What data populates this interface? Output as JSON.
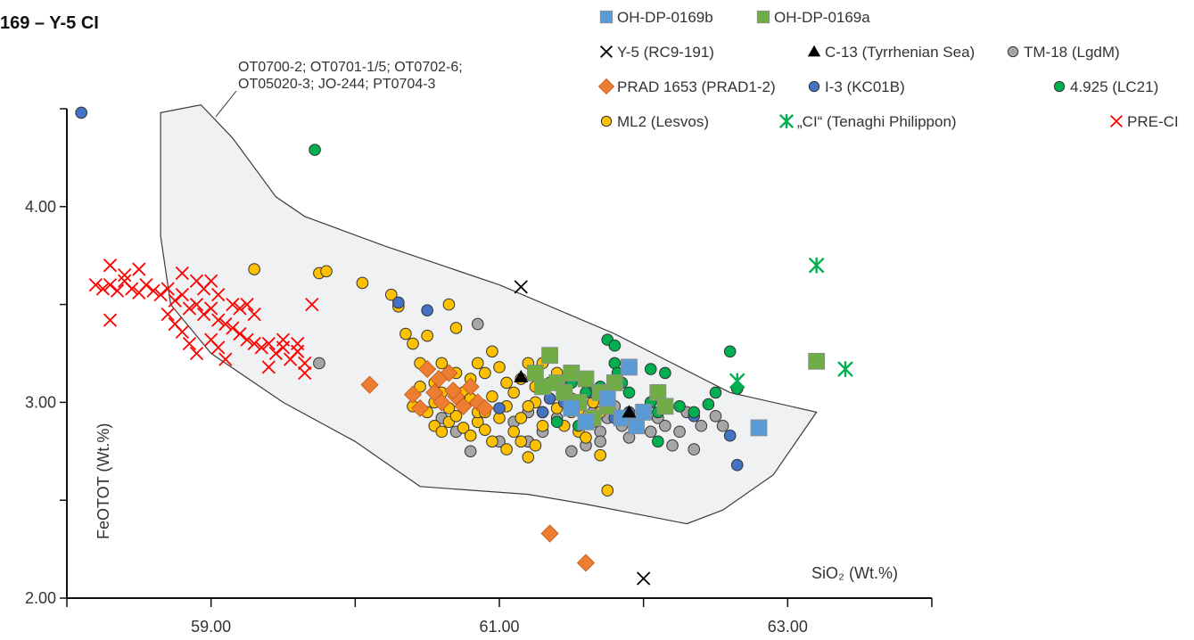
{
  "chart_data": {
    "type": "scatter",
    "title": "169 – Y-5 CI",
    "xlabel": "SiO₂ (Wt.%)",
    "ylabel": "FeOTOT (Wt.%)",
    "xlim": [
      58.0,
      64.0
    ],
    "ylim": [
      2.0,
      4.5
    ],
    "x_ticks": [
      59.0,
      61.0,
      63.0
    ],
    "x_tick_labels": [
      "59.00",
      "61.00",
      "63.00"
    ],
    "y_ticks": [
      2.0,
      3.0,
      4.0
    ],
    "y_tick_labels": [
      "2.00",
      "3.00",
      "4.00"
    ],
    "field_annotation": [
      "OT0700-2; OT0701-1/5; OT0702-6;",
      "OT05020-3; JO-244; PT0704-3"
    ],
    "field_outline": [
      [
        58.65,
        4.48
      ],
      [
        58.93,
        4.52
      ],
      [
        59.15,
        4.35
      ],
      [
        59.45,
        4.05
      ],
      [
        59.65,
        3.95
      ],
      [
        60.2,
        3.8
      ],
      [
        61.0,
        3.6
      ],
      [
        61.8,
        3.35
      ],
      [
        62.2,
        3.2
      ],
      [
        62.6,
        3.05
      ],
      [
        63.2,
        2.95
      ],
      [
        62.9,
        2.63
      ],
      [
        62.55,
        2.45
      ],
      [
        62.3,
        2.38
      ],
      [
        61.6,
        2.48
      ],
      [
        61.2,
        2.53
      ],
      [
        60.45,
        2.57
      ],
      [
        60.0,
        2.8
      ],
      [
        59.5,
        3.0
      ],
      [
        59.0,
        3.25
      ],
      [
        58.72,
        3.5
      ],
      [
        58.65,
        3.85
      ],
      [
        58.65,
        4.1
      ]
    ],
    "series": [
      {
        "name": "OH-DP-0169b",
        "marker": "square",
        "color": "#5b9bd5",
        "points": [
          [
            61.85,
            2.92
          ],
          [
            61.95,
            2.88
          ],
          [
            62.0,
            2.95
          ],
          [
            61.9,
            3.18
          ],
          [
            61.5,
            2.97
          ],
          [
            62.8,
            2.87
          ],
          [
            61.75,
            3.02
          ],
          [
            61.6,
            2.9
          ]
        ]
      },
      {
        "name": "OH-DP-0169a",
        "marker": "square",
        "color": "#70ad47",
        "points": [
          [
            61.4,
            3.1
          ],
          [
            61.5,
            3.15
          ],
          [
            61.45,
            3.05
          ],
          [
            61.55,
            3.0
          ],
          [
            61.3,
            3.08
          ],
          [
            61.35,
            3.24
          ],
          [
            61.6,
            3.12
          ],
          [
            61.7,
            3.05
          ],
          [
            61.75,
            2.98
          ],
          [
            61.8,
            3.1
          ],
          [
            62.1,
            3.05
          ],
          [
            62.15,
            2.98
          ],
          [
            61.65,
            2.92
          ],
          [
            61.25,
            3.15
          ],
          [
            63.2,
            3.21
          ]
        ]
      },
      {
        "name": "Y-5 (RC9-191)",
        "marker": "xcross",
        "color": "#000000",
        "points": [
          [
            61.15,
            3.59
          ],
          [
            62.0,
            2.1
          ]
        ]
      },
      {
        "name": "C-13 (Tyrrhenian Sea)",
        "marker": "triangle",
        "color": "#000000",
        "points": [
          [
            61.15,
            3.13
          ],
          [
            61.9,
            2.95
          ]
        ]
      },
      {
        "name": "TM-18 (LgdM)",
        "marker": "circle",
        "color": "#a6a6a6",
        "points": [
          [
            59.75,
            3.2
          ],
          [
            60.85,
            3.4
          ],
          [
            61.1,
            2.9
          ],
          [
            61.2,
            2.95
          ],
          [
            61.3,
            2.85
          ],
          [
            61.4,
            2.92
          ],
          [
            61.45,
            3.0
          ],
          [
            61.55,
            2.88
          ],
          [
            61.65,
            2.95
          ],
          [
            61.7,
            2.85
          ],
          [
            61.75,
            2.92
          ],
          [
            61.8,
            2.98
          ],
          [
            61.85,
            2.88
          ],
          [
            61.9,
            2.82
          ],
          [
            61.95,
            2.9
          ],
          [
            62.0,
            2.95
          ],
          [
            62.05,
            2.85
          ],
          [
            62.1,
            2.92
          ],
          [
            62.15,
            2.88
          ],
          [
            62.2,
            2.78
          ],
          [
            62.25,
            2.85
          ],
          [
            62.3,
            2.95
          ],
          [
            62.4,
            2.88
          ],
          [
            62.5,
            2.93
          ],
          [
            62.55,
            2.88
          ],
          [
            62.35,
            2.76
          ],
          [
            60.6,
            2.92
          ],
          [
            60.7,
            2.85
          ],
          [
            60.8,
            2.75
          ],
          [
            61.0,
            2.8
          ],
          [
            61.2,
            2.8
          ],
          [
            61.5,
            2.75
          ],
          [
            61.6,
            2.78
          ],
          [
            61.7,
            2.8
          ]
        ]
      },
      {
        "name": "PRAD 1653 (PRAD1-2)",
        "marker": "diamond",
        "color": "#ed7d31",
        "points": [
          [
            60.1,
            3.09
          ],
          [
            60.4,
            3.04
          ],
          [
            60.5,
            3.17
          ],
          [
            60.55,
            3.05
          ],
          [
            60.6,
            3.0
          ],
          [
            60.65,
            3.15
          ],
          [
            60.7,
            3.03
          ],
          [
            60.75,
            2.98
          ],
          [
            60.8,
            3.08
          ],
          [
            60.85,
            3.0
          ],
          [
            60.9,
            2.97
          ],
          [
            60.45,
            2.97
          ],
          [
            60.58,
            3.12
          ],
          [
            60.68,
            3.06
          ],
          [
            61.35,
            2.33
          ],
          [
            61.6,
            2.18
          ]
        ]
      },
      {
        "name": "I-3 (KC01B)",
        "marker": "circle",
        "color": "#4472c4",
        "points": [
          [
            58.1,
            4.48
          ],
          [
            60.3,
            3.51
          ],
          [
            60.5,
            3.47
          ],
          [
            61.0,
            2.97
          ],
          [
            61.3,
            2.95
          ],
          [
            61.35,
            3.02
          ],
          [
            61.45,
            3.0
          ],
          [
            61.65,
            3.05
          ],
          [
            61.8,
            2.92
          ],
          [
            61.9,
            2.95
          ],
          [
            62.05,
            3.0
          ],
          [
            62.35,
            2.93
          ],
          [
            62.6,
            2.83
          ],
          [
            62.65,
            2.68
          ]
        ]
      },
      {
        "name": "4.925 (LC21)",
        "marker": "circle",
        "color": "#00b050",
        "points": [
          [
            59.72,
            4.29
          ],
          [
            61.75,
            3.32
          ],
          [
            61.8,
            3.29
          ],
          [
            61.8,
            3.2
          ],
          [
            61.82,
            3.15
          ],
          [
            61.85,
            3.1
          ],
          [
            61.9,
            3.05
          ],
          [
            62.05,
            3.17
          ],
          [
            62.15,
            3.15
          ],
          [
            62.05,
            3.0
          ],
          [
            62.1,
            2.95
          ],
          [
            62.25,
            2.98
          ],
          [
            62.35,
            2.95
          ],
          [
            62.6,
            3.26
          ],
          [
            62.5,
            3.05
          ],
          [
            62.45,
            2.99
          ],
          [
            62.65,
            3.07
          ],
          [
            62.1,
            2.8
          ],
          [
            61.7,
            3.08
          ],
          [
            61.5,
            3.1
          ],
          [
            61.6,
            3.05
          ],
          [
            61.4,
            2.9
          ],
          [
            61.55,
            2.88
          ]
        ]
      },
      {
        "name": "ML2 (Lesvos)",
        "marker": "circle",
        "color": "#ffc000",
        "points": [
          [
            59.3,
            3.68
          ],
          [
            59.75,
            3.66
          ],
          [
            59.8,
            3.67
          ],
          [
            60.05,
            3.61
          ],
          [
            60.25,
            3.55
          ],
          [
            60.3,
            3.49
          ],
          [
            60.35,
            3.35
          ],
          [
            60.4,
            3.3
          ],
          [
            60.45,
            3.2
          ],
          [
            60.5,
            3.34
          ],
          [
            60.55,
            3.1
          ],
          [
            60.6,
            3.2
          ],
          [
            60.65,
            3.5
          ],
          [
            60.7,
            3.38
          ],
          [
            60.75,
            3.05
          ],
          [
            60.8,
            3.12
          ],
          [
            60.85,
            3.2
          ],
          [
            60.9,
            3.15
          ],
          [
            60.95,
            3.26
          ],
          [
            61.0,
            3.18
          ],
          [
            61.05,
            3.1
          ],
          [
            61.1,
            3.05
          ],
          [
            61.15,
            3.12
          ],
          [
            61.2,
            3.2
          ],
          [
            61.25,
            3.0
          ],
          [
            61.3,
            2.95
          ],
          [
            61.35,
            3.1
          ],
          [
            61.4,
            3.15
          ],
          [
            61.45,
            3.05
          ],
          [
            61.5,
            2.95
          ],
          [
            61.55,
            2.85
          ],
          [
            61.6,
            2.82
          ],
          [
            61.65,
            2.9
          ],
          [
            61.7,
            2.73
          ],
          [
            61.75,
            2.55
          ],
          [
            60.4,
            2.98
          ],
          [
            60.5,
            2.95
          ],
          [
            60.55,
            2.88
          ],
          [
            60.6,
            2.85
          ],
          [
            60.65,
            2.9
          ],
          [
            60.7,
            2.93
          ],
          [
            60.75,
            2.87
          ],
          [
            60.8,
            2.83
          ],
          [
            60.85,
            2.9
          ],
          [
            60.9,
            2.86
          ],
          [
            60.95,
            2.8
          ],
          [
            61.0,
            2.92
          ],
          [
            61.05,
            2.76
          ],
          [
            61.1,
            2.85
          ],
          [
            61.15,
            2.8
          ],
          [
            61.2,
            2.72
          ],
          [
            61.25,
            2.78
          ],
          [
            61.3,
            2.88
          ],
          [
            60.45,
            3.08
          ],
          [
            60.55,
            3.0
          ],
          [
            60.65,
            2.97
          ],
          [
            60.75,
            2.98
          ],
          [
            60.85,
            2.95
          ],
          [
            60.95,
            3.03
          ],
          [
            61.05,
            2.98
          ],
          [
            61.15,
            2.92
          ],
          [
            61.2,
            2.98
          ],
          [
            61.25,
            3.08
          ],
          [
            61.3,
            3.2
          ],
          [
            61.4,
            2.97
          ],
          [
            61.45,
            2.88
          ],
          [
            61.5,
            3.02
          ],
          [
            61.55,
            2.96
          ],
          [
            61.6,
            3.1
          ],
          [
            61.65,
            3.0
          ],
          [
            61.7,
            2.95
          ],
          [
            60.6,
            3.05
          ],
          [
            60.7,
            3.15
          ],
          [
            60.8,
            3.02
          ],
          [
            60.9,
            2.95
          ]
        ]
      },
      {
        "name": "„CI“ (Tenaghi Philippon)",
        "marker": "asterisk",
        "color": "#00b050",
        "points": [
          [
            63.2,
            3.7
          ],
          [
            62.65,
            3.11
          ],
          [
            63.4,
            3.17
          ]
        ]
      },
      {
        "name": "PRE-CI",
        "marker": "xcross",
        "color": "#ff0000",
        "points": [
          [
            58.2,
            3.6
          ],
          [
            58.25,
            3.58
          ],
          [
            58.3,
            3.6
          ],
          [
            58.35,
            3.57
          ],
          [
            58.4,
            3.62
          ],
          [
            58.45,
            3.58
          ],
          [
            58.5,
            3.56
          ],
          [
            58.55,
            3.6
          ],
          [
            58.6,
            3.57
          ],
          [
            58.65,
            3.55
          ],
          [
            58.7,
            3.58
          ],
          [
            58.75,
            3.52
          ],
          [
            58.8,
            3.55
          ],
          [
            58.85,
            3.48
          ],
          [
            58.9,
            3.5
          ],
          [
            58.95,
            3.45
          ],
          [
            59.0,
            3.48
          ],
          [
            59.05,
            3.42
          ],
          [
            59.1,
            3.4
          ],
          [
            59.15,
            3.38
          ],
          [
            59.2,
            3.35
          ],
          [
            59.25,
            3.32
          ],
          [
            59.3,
            3.3
          ],
          [
            59.35,
            3.28
          ],
          [
            59.4,
            3.3
          ],
          [
            59.45,
            3.25
          ],
          [
            59.5,
            3.28
          ],
          [
            59.55,
            3.22
          ],
          [
            59.6,
            3.26
          ],
          [
            59.65,
            3.2
          ],
          [
            58.3,
            3.7
          ],
          [
            58.4,
            3.65
          ],
          [
            58.5,
            3.68
          ],
          [
            58.8,
            3.66
          ],
          [
            58.9,
            3.62
          ],
          [
            58.95,
            3.58
          ],
          [
            59.0,
            3.62
          ],
          [
            59.05,
            3.55
          ],
          [
            58.3,
            3.42
          ],
          [
            58.7,
            3.45
          ],
          [
            58.75,
            3.4
          ],
          [
            58.8,
            3.36
          ],
          [
            58.85,
            3.3
          ],
          [
            58.9,
            3.25
          ],
          [
            59.0,
            3.32
          ],
          [
            59.05,
            3.28
          ],
          [
            59.1,
            3.22
          ],
          [
            59.2,
            3.48
          ],
          [
            59.3,
            3.45
          ],
          [
            59.4,
            3.18
          ],
          [
            59.5,
            3.32
          ],
          [
            59.6,
            3.3
          ],
          [
            59.7,
            3.5
          ],
          [
            59.65,
            3.15
          ],
          [
            59.15,
            3.5
          ],
          [
            59.25,
            3.5
          ]
        ]
      }
    ],
    "legend_placement": "top-right"
  }
}
